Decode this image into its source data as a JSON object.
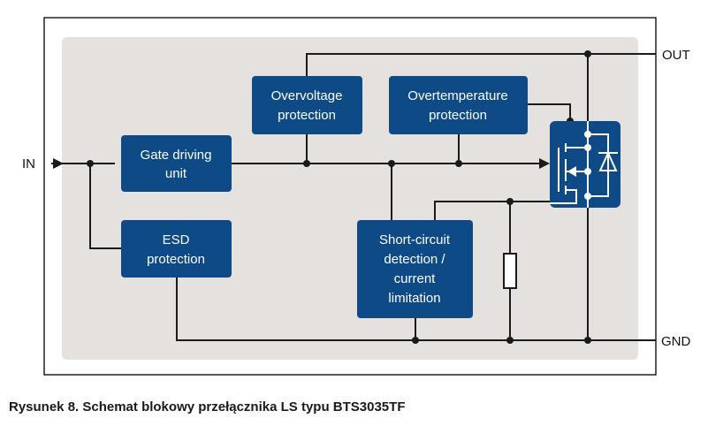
{
  "diagram": {
    "blocks": {
      "gate": [
        "Gate driving",
        "unit"
      ],
      "esd": [
        "ESD",
        "protection"
      ],
      "overvoltage": [
        "Overvoltage",
        "protection"
      ],
      "overtemp": [
        "Overtemperature",
        "protection"
      ],
      "shortcircuit": [
        "Short-circuit",
        "detection /",
        "current",
        "limitation"
      ]
    },
    "pins": {
      "in": "IN",
      "out": "OUT",
      "gnd": "GND"
    },
    "colors": {
      "block": "#0d4a86",
      "background": "#e4e1df"
    }
  },
  "caption": "Rysunek 8. Schemat blokowy przełącznika LS typu BTS3035TF"
}
